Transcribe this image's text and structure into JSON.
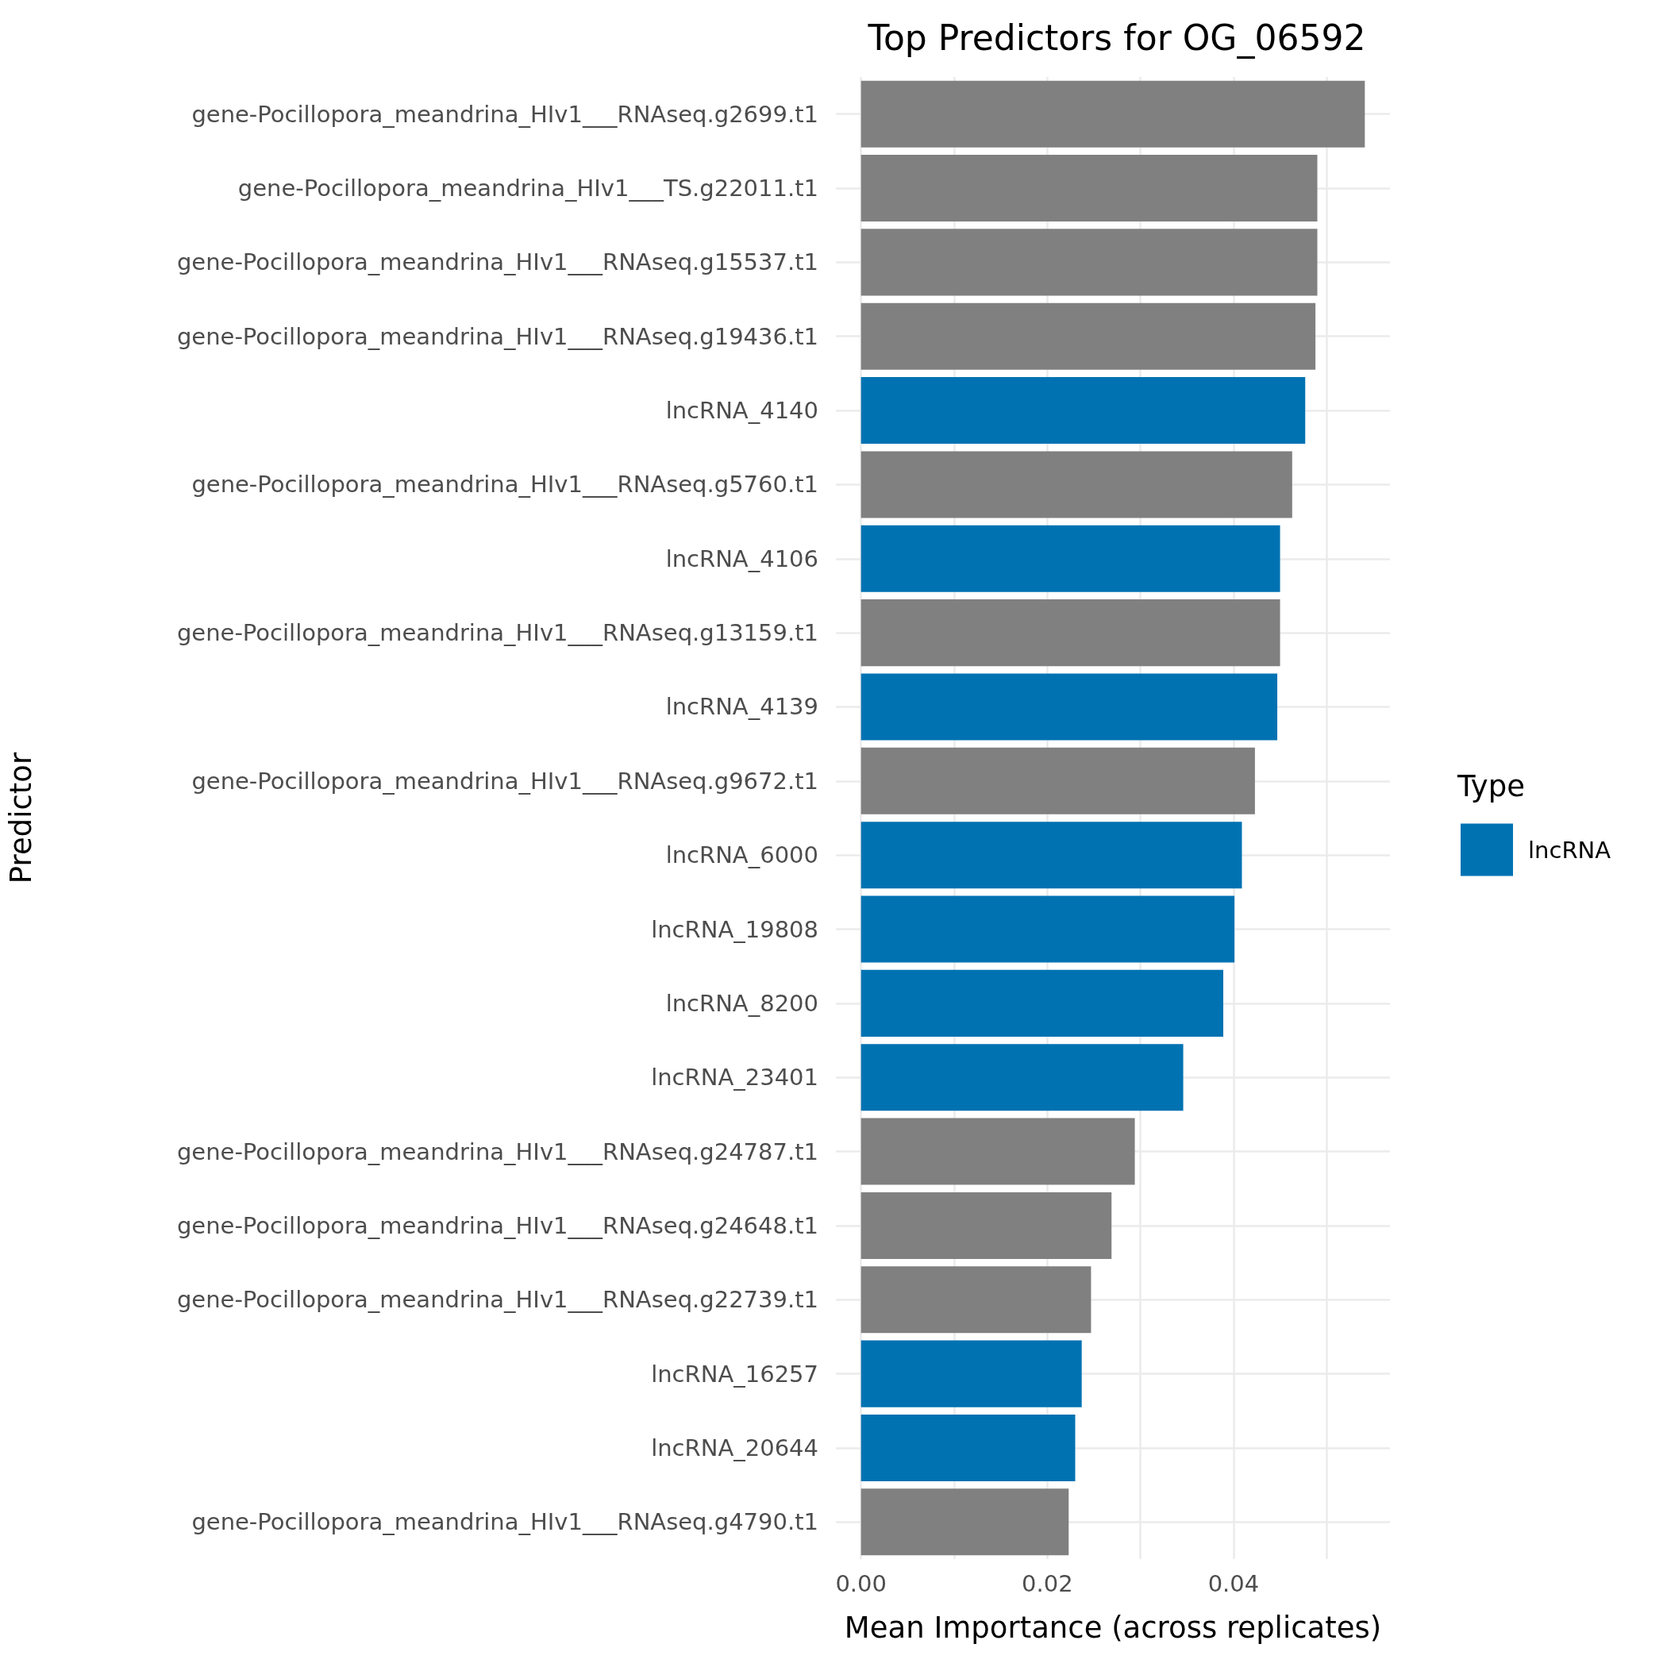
{
  "chart_data": {
    "type": "bar",
    "orientation": "horizontal",
    "title": "Top Predictors for OG_06592",
    "xlabel": "Mean Importance (across replicates)",
    "ylabel": "Predictor",
    "legend_title": "Type",
    "categories": [
      "gene-Pocillopora_meandrina_HIv1___RNAseq.g2699.t1",
      "gene-Pocillopora_meandrina_HIv1___TS.g22011.t1",
      "gene-Pocillopora_meandrina_HIv1___RNAseq.g15537.t1",
      "gene-Pocillopora_meandrina_HIv1___RNAseq.g19436.t1",
      "lncRNA_4140",
      "gene-Pocillopora_meandrina_HIv1___RNAseq.g5760.t1",
      "lncRNA_4106",
      "gene-Pocillopora_meandrina_HIv1___RNAseq.g13159.t1",
      "lncRNA_4139",
      "gene-Pocillopora_meandrina_HIv1___RNAseq.g9672.t1",
      "lncRNA_6000",
      "lncRNA_19808",
      "lncRNA_8200",
      "lncRNA_23401",
      "gene-Pocillopora_meandrina_HIv1___RNAseq.g24787.t1",
      "gene-Pocillopora_meandrina_HIv1___RNAseq.g24648.t1",
      "gene-Pocillopora_meandrina_HIv1___RNAseq.g22739.t1",
      "lncRNA_16257",
      "lncRNA_20644",
      "gene-Pocillopora_meandrina_HIv1___RNAseq.g4790.t1"
    ],
    "series": [
      {
        "name": "lncRNA",
        "color": "#0072b2",
        "values": [
          null,
          null,
          null,
          null,
          0.0477,
          null,
          0.045,
          null,
          0.0447,
          null,
          0.0409,
          0.0401,
          0.0389,
          0.0346,
          null,
          null,
          null,
          0.0237,
          0.023,
          null
        ]
      },
      {
        "color": "#808080",
        "values": [
          0.0541,
          0.049,
          0.049,
          0.0488,
          null,
          0.0463,
          null,
          0.045,
          null,
          0.0423,
          null,
          null,
          null,
          null,
          0.0294,
          0.0269,
          0.0247,
          null,
          null,
          0.0223
        ]
      }
    ],
    "xlim": [
      -0.0027,
      0.0568
    ],
    "xticks": [
      {
        "value": 0,
        "label": "0.00"
      },
      {
        "value": 0.01,
        "label": null
      },
      0.02,
      {
        "value": 0.03,
        "label": null
      },
      0.04,
      {
        "value": 0.05,
        "label": null
      }
    ],
    "grid": true,
    "legend": "right"
  }
}
